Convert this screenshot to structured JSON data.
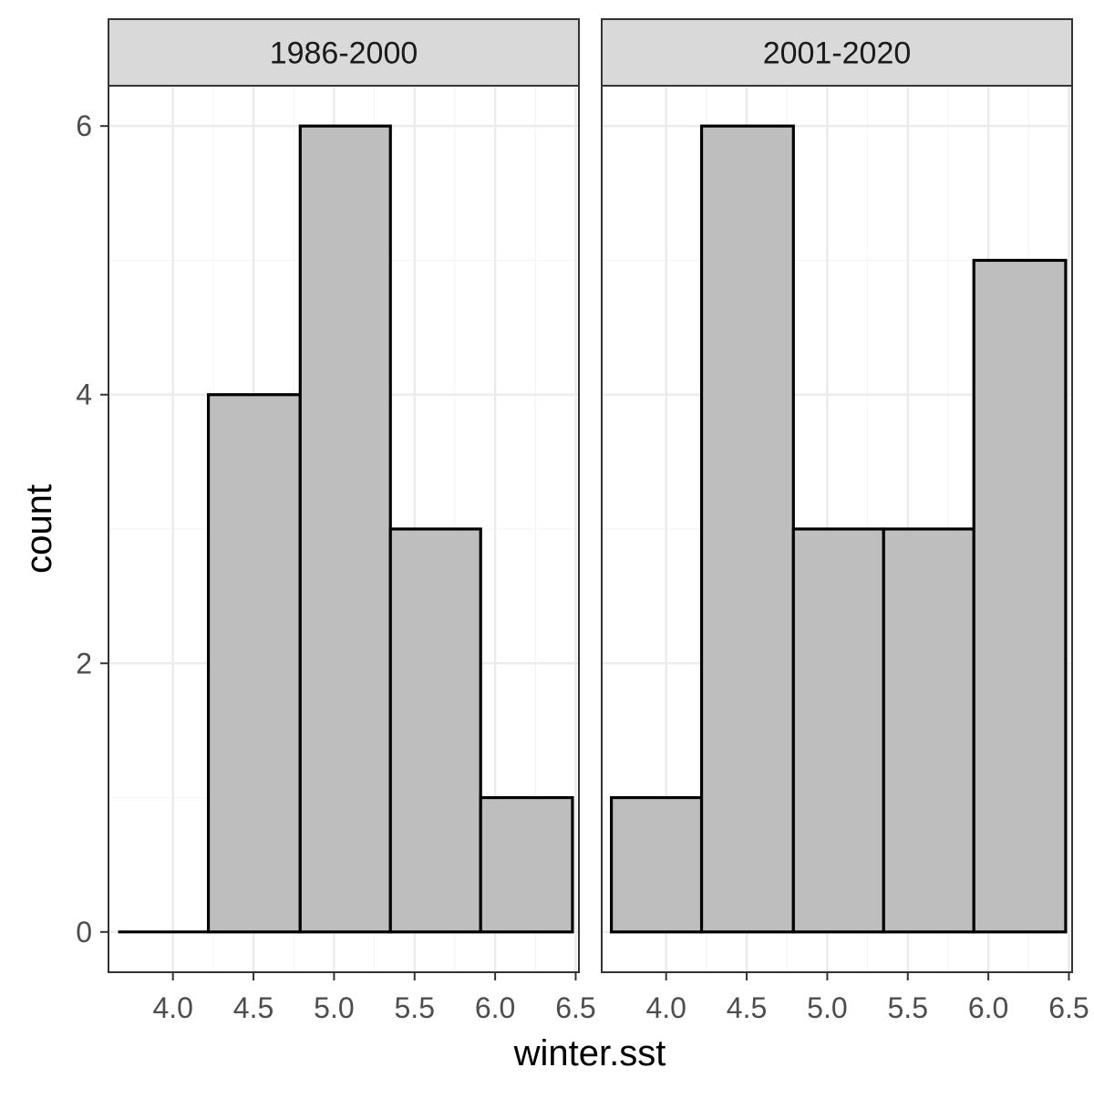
{
  "chart_data": {
    "type": "bar",
    "chart_kind": "faceted-histogram",
    "xlabel": "winter.sst",
    "ylabel": "count",
    "xlim": [
      3.6,
      6.52
    ],
    "ylim": [
      -0.3,
      6.3
    ],
    "x_ticks": [
      "4.0",
      "4.5",
      "5.0",
      "5.5",
      "6.0",
      "6.5"
    ],
    "x_tick_values": [
      4.0,
      4.5,
      5.0,
      5.5,
      6.0,
      6.5
    ],
    "y_ticks": [
      "0",
      "2",
      "4",
      "6"
    ],
    "y_tick_values": [
      0,
      2,
      4,
      6
    ],
    "bin_edges": [
      3.66,
      4.22,
      4.79,
      5.35,
      5.91,
      6.48
    ],
    "grid": true,
    "theme": "bw",
    "colors": {
      "bar_fill": "#bebebe",
      "bar_outline": "#000000",
      "strip_fill": "#d9d9d9",
      "grid_major": "#ebebeb",
      "grid_minor": "#f5f5f5",
      "panel_border": "#333333"
    },
    "facets": [
      {
        "label": "1986-2000",
        "counts": [
          0,
          4,
          6,
          3,
          1
        ]
      },
      {
        "label": "2001-2020",
        "counts": [
          1,
          6,
          3,
          3,
          5
        ]
      }
    ]
  }
}
